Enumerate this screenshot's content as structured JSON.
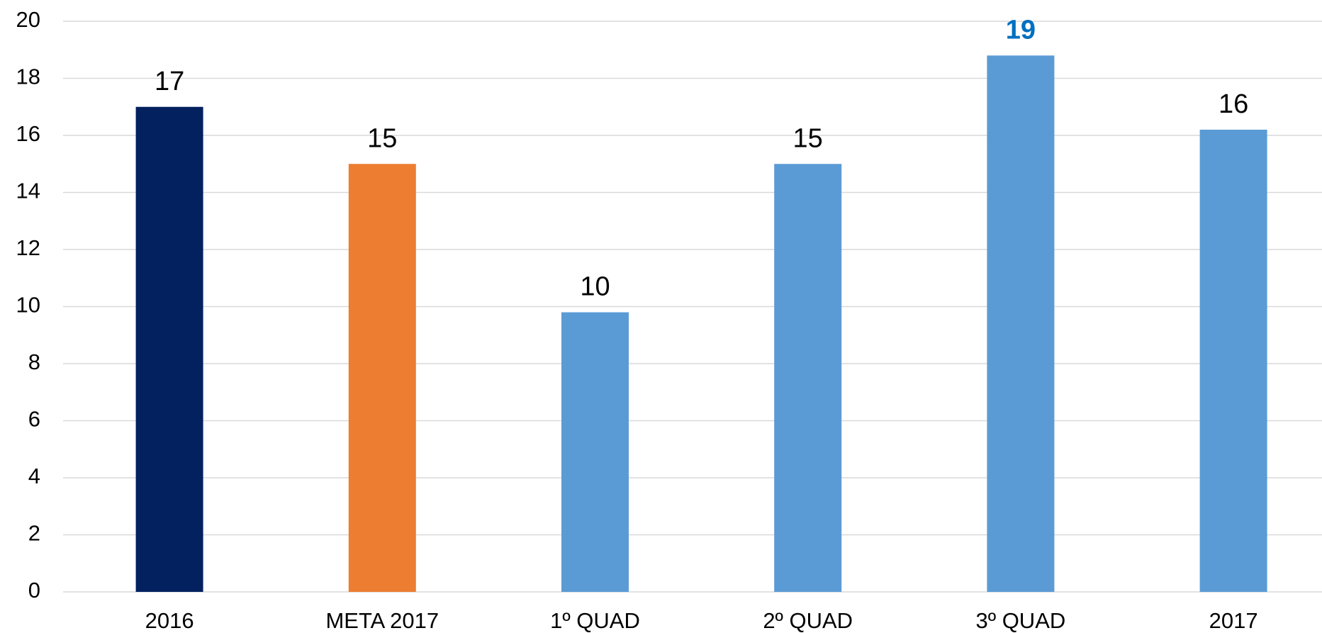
{
  "chart_data": {
    "type": "bar",
    "categories": [
      "2016",
      "META 2017",
      "1º QUAD",
      "2º QUAD",
      "3º QUAD",
      "2017"
    ],
    "values": [
      17,
      15,
      9.8,
      15,
      18.8,
      16.2
    ],
    "value_labels": [
      "17",
      "15",
      "10",
      "15",
      "19",
      "16"
    ],
    "colors": [
      "#03215f",
      "#ed7d31",
      "#5b9bd5",
      "#5b9bd5",
      "#5b9bd5",
      "#5b9bd5"
    ],
    "value_label_colors": [
      "#000000",
      "#000000",
      "#000000",
      "#000000",
      "#0070c0",
      "#000000"
    ],
    "ylim": [
      0,
      20
    ],
    "yticks": [
      0,
      2,
      4,
      6,
      8,
      10,
      12,
      14,
      16,
      18,
      20
    ],
    "grid": true
  }
}
